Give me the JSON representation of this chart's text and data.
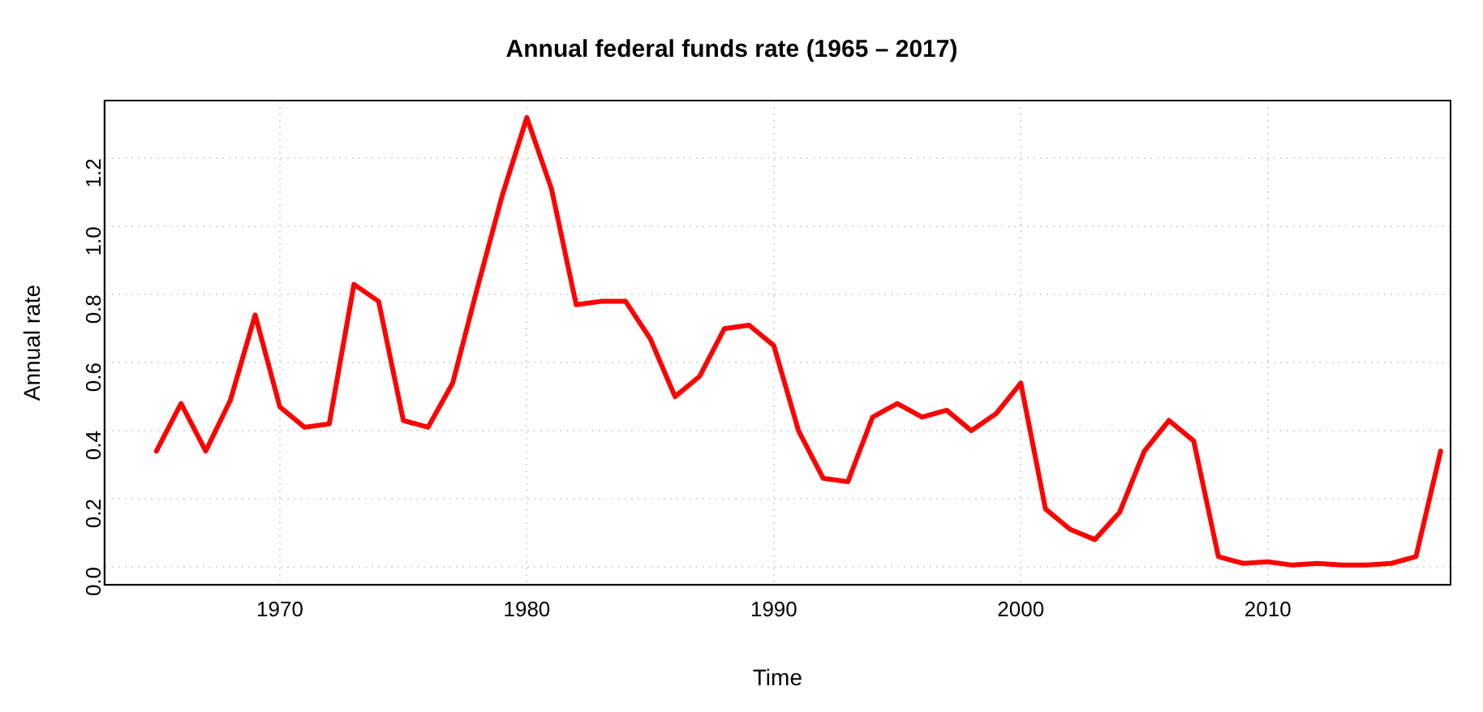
{
  "chart_data": {
    "type": "line",
    "title": "Annual federal funds rate (1965 – 2017)",
    "xlabel": "Time",
    "ylabel": "Annual rate",
    "x": [
      1965,
      1966,
      1967,
      1968,
      1969,
      1970,
      1971,
      1972,
      1973,
      1974,
      1975,
      1976,
      1977,
      1978,
      1979,
      1980,
      1981,
      1982,
      1983,
      1984,
      1985,
      1986,
      1987,
      1988,
      1989,
      1990,
      1991,
      1992,
      1993,
      1994,
      1995,
      1996,
      1997,
      1998,
      1999,
      2000,
      2001,
      2002,
      2003,
      2004,
      2005,
      2006,
      2007,
      2008,
      2009,
      2010,
      2011,
      2012,
      2013,
      2014,
      2015,
      2016,
      2017
    ],
    "series": [
      {
        "color": "#ff0000",
        "values": [
          0.34,
          0.48,
          0.34,
          0.49,
          0.74,
          0.47,
          0.41,
          0.42,
          0.83,
          0.78,
          0.43,
          0.41,
          0.54,
          0.82,
          1.09,
          1.32,
          1.11,
          0.77,
          0.78,
          0.78,
          0.67,
          0.5,
          0.56,
          0.7,
          0.71,
          0.65,
          0.4,
          0.26,
          0.25,
          0.44,
          0.48,
          0.44,
          0.46,
          0.4,
          0.45,
          0.54,
          0.17,
          0.11,
          0.08,
          0.16,
          0.34,
          0.43,
          0.37,
          0.03,
          0.01,
          0.015,
          0.005,
          0.01,
          0.005,
          0.005,
          0.01,
          0.03,
          0.34
        ]
      }
    ],
    "xlim": [
      1962.9,
      2017.4
    ],
    "xticks": [
      1970,
      1980,
      1990,
      2000,
      2010
    ],
    "ylim": [
      -0.053,
      1.37
    ],
    "yticks": [
      {
        "value": 0,
        "label": "0.0"
      },
      0.2,
      0.4,
      0.6,
      0.8,
      {
        "value": 1,
        "label": "1.0"
      },
      1.2
    ],
    "grid": true,
    "legend": false,
    "marker": "none",
    "line_style": "solid"
  }
}
